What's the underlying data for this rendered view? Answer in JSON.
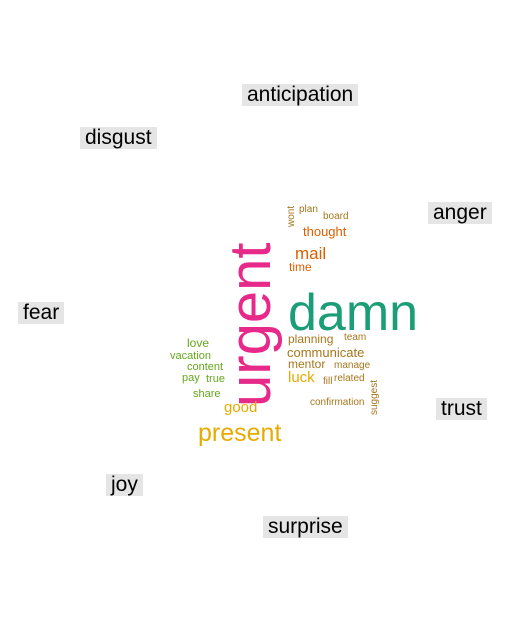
{
  "chart_data": {
    "type": "wordcloud",
    "title": "",
    "category_labels": [
      "anticipation",
      "disgust",
      "anger",
      "fear",
      "trust",
      "joy",
      "surprise"
    ],
    "colors": {
      "anger": "#e7298a",
      "trust": "#1b9e77",
      "anticipation": "#d95f02",
      "joy": "#e6ab02",
      "love_group": "#66a61e",
      "misc": "#a6761d"
    },
    "words": [
      {
        "text": "urgent",
        "color": "#e7298a",
        "size": 58,
        "rotate": -90
      },
      {
        "text": "damn",
        "color": "#1b9e77",
        "size": 52,
        "rotate": 0
      },
      {
        "text": "present",
        "color": "#e6ab02",
        "size": 25,
        "rotate": 0
      },
      {
        "text": "mail",
        "color": "#d95f02",
        "size": 17,
        "rotate": 0
      },
      {
        "text": "luck",
        "color": "#e6ab02",
        "size": 15,
        "rotate": 0
      },
      {
        "text": "good",
        "color": "#e6ab02",
        "size": 15,
        "rotate": 0
      },
      {
        "text": "thought",
        "color": "#d95f02",
        "size": 13,
        "rotate": 0
      },
      {
        "text": "communicate",
        "color": "#a6761d",
        "size": 13,
        "rotate": 0
      },
      {
        "text": "time",
        "color": "#d95f02",
        "size": 12,
        "rotate": 0
      },
      {
        "text": "planning",
        "color": "#a6761d",
        "size": 12,
        "rotate": 0
      },
      {
        "text": "mentor",
        "color": "#a6761d",
        "size": 12,
        "rotate": 0
      },
      {
        "text": "love",
        "color": "#66a61e",
        "size": 12,
        "rotate": 0
      },
      {
        "text": "vacation",
        "color": "#66a61e",
        "size": 11,
        "rotate": 0
      },
      {
        "text": "content",
        "color": "#66a61e",
        "size": 11,
        "rotate": 0
      },
      {
        "text": "pay",
        "color": "#66a61e",
        "size": 11,
        "rotate": 0
      },
      {
        "text": "true",
        "color": "#66a61e",
        "size": 11,
        "rotate": 0
      },
      {
        "text": "share",
        "color": "#66a61e",
        "size": 11,
        "rotate": 0
      },
      {
        "text": "plan",
        "color": "#a6761d",
        "size": 10,
        "rotate": 0
      },
      {
        "text": "board",
        "color": "#a6761d",
        "size": 10,
        "rotate": 0
      },
      {
        "text": "wont",
        "color": "#a6761d",
        "size": 10,
        "rotate": -90
      },
      {
        "text": "team",
        "color": "#a6761d",
        "size": 10,
        "rotate": 0
      },
      {
        "text": "manage",
        "color": "#a6761d",
        "size": 10,
        "rotate": 0
      },
      {
        "text": "fill",
        "color": "#a6761d",
        "size": 10,
        "rotate": 0
      },
      {
        "text": "related",
        "color": "#a6761d",
        "size": 10,
        "rotate": 0
      },
      {
        "text": "confirmation",
        "color": "#a6761d",
        "size": 10,
        "rotate": 0
      },
      {
        "text": "suggest",
        "color": "#a6761d",
        "size": 10,
        "rotate": -90
      }
    ]
  }
}
